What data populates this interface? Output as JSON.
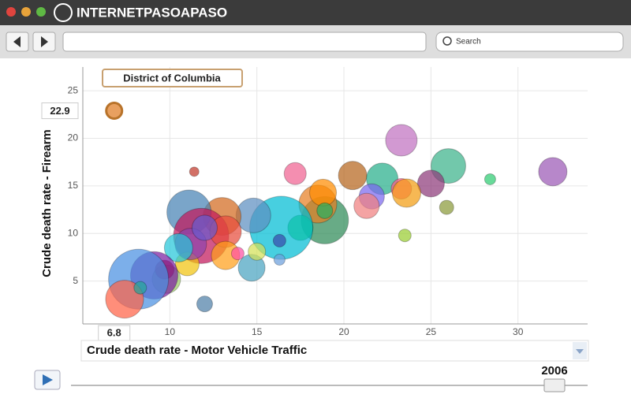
{
  "browser": {
    "site_name": "INTERNETPASOAPASO",
    "search_placeholder": "Search"
  },
  "player": {
    "year": "2006"
  },
  "chart_data": {
    "type": "scatter",
    "xlabel": "Crude death rate - Motor Vehicle Traffic",
    "ylabel": "Crude death rate - Firearm",
    "annotation": "District of Columbia",
    "xlim": [
      5,
      34
    ],
    "ylim": [
      0.5,
      27.5
    ],
    "xticks": [
      10,
      15,
      20,
      25,
      30
    ],
    "yticks": [
      5,
      10,
      15,
      20,
      25
    ],
    "grid": true,
    "x": [
      6.8,
      11.4,
      17.2,
      20.5,
      23.3,
      26.0,
      28.4,
      32.0,
      22.2,
      25.0,
      23.3,
      23.6,
      21.6,
      21.3,
      25.9,
      23.5,
      18.9,
      18.5,
      18.8,
      18.9,
      17.5,
      16.4,
      14.8,
      16.3,
      16.3,
      14.7,
      15.0,
      13.0,
      11.1,
      11.8,
      13.2,
      13.2,
      11.0,
      11.2,
      10.5,
      12.0,
      13.9,
      9.8,
      9.7,
      9.1,
      8.2,
      7.4,
      12.0,
      8.3
    ],
    "values": [
      22.9,
      16.5,
      16.3,
      16.1,
      19.8,
      17.1,
      15.7,
      16.5,
      15.75,
      15.25,
      14.7,
      14.25,
      13.9,
      12.9,
      12.75,
      9.8,
      11.4,
      13.1,
      14.3,
      12.4,
      10.6,
      10.6,
      11.9,
      9.25,
      7.25,
      6.4,
      8.1,
      11.8,
      12.25,
      9.75,
      10.2,
      7.7,
      6.8,
      8.9,
      8.5,
      10.6,
      7.9,
      5.2,
      6.2,
      5.6,
      5.2,
      3.1,
      2.6,
      4.3
    ],
    "sizes": [
      10,
      6,
      14,
      18,
      20,
      22,
      7,
      18,
      20,
      17,
      13,
      18,
      16,
      16,
      9,
      8,
      30,
      24,
      17,
      10,
      16,
      40,
      22,
      8,
      7,
      17,
      11,
      24,
      28,
      35,
      20,
      18,
      15,
      20,
      18,
      16,
      8,
      18,
      12,
      30,
      38,
      24,
      10,
      8
    ],
    "colors": [
      "#e8a060",
      "#c0392b",
      "#f06292",
      "#b5651d",
      "#c071c0",
      "#3cb38a",
      "#2ecc71",
      "#9b59b6",
      "#27ae8a",
      "#8e3a7a",
      "#ff5c8a",
      "#f39c12",
      "#7b68ee",
      "#f08080",
      "#8a9a3a",
      "#9acd32",
      "#2e8b57",
      "#e67e22",
      "#ff8c00",
      "#27ae60",
      "#2ecc40",
      "#00bcd4",
      "#5d8fc0",
      "#3949ab",
      "#6ca0dc",
      "#4aa3c0",
      "#d4e157",
      "#d2691e",
      "#4682b4",
      "#c2185b",
      "#e74c3c",
      "#ff9f1a",
      "#f1c40f",
      "#8e44ad",
      "#26c6da",
      "#6a5acd",
      "#ff4fa3",
      "#9ccc65",
      "#b71c1c",
      "#7b1fa2",
      "#4a90e2",
      "#ff6347",
      "#4f7fa8",
      "#26a69a"
    ]
  }
}
